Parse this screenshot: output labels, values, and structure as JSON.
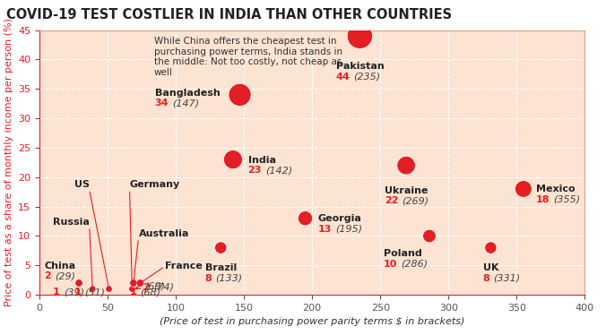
{
  "chart_data": {
    "type": "scatter",
    "title": "COVID-19 TEST COSTLIER IN INDIA THAN OTHER COUNTRIES",
    "annotation": "While China offers the cheapest test in purchasing power terms, India stands in the middle: Not too costly, not cheap as well",
    "x_label": "(Price of test in purchasing power parity terms $ in brackets)",
    "y_label": "Price of test as a share of monthly income per person (%)",
    "categories": [
      "China",
      "Russia",
      "US",
      "Germany",
      "Australia",
      "France",
      "Brazil",
      "India",
      "Bangladesh",
      "Georgia",
      "Pakistan",
      "Ukraine",
      "Poland",
      "UK",
      "Mexico"
    ],
    "x": [
      29,
      39,
      51,
      68,
      69,
      74,
      133,
      142,
      147,
      195,
      235,
      269,
      286,
      331,
      355
    ],
    "values": [
      2,
      1,
      1,
      1,
      2,
      2,
      8,
      23,
      34,
      13,
      44,
      22,
      10,
      8,
      18
    ],
    "value_labels": [
      "2 (29)",
      "1 (39)",
      "1 (51)",
      "1 (68)",
      "2 (69)",
      "2 (74)",
      "8 (133)",
      "23 (142)",
      "34 (147)",
      "13 (195)",
      "44 (235)",
      "22 (269)",
      "10 (286)",
      "8 (331)",
      "18 (355)"
    ],
    "color": "#e31e24",
    "xlim": [
      0,
      400
    ],
    "xticks": [
      0,
      50,
      100,
      150,
      200,
      250,
      300,
      350,
      400
    ],
    "ylim": [
      0,
      45
    ],
    "yticks": [
      0,
      5,
      10,
      15,
      20,
      25,
      30,
      35,
      40,
      45
    ],
    "grid": true,
    "data_labels": true
  }
}
